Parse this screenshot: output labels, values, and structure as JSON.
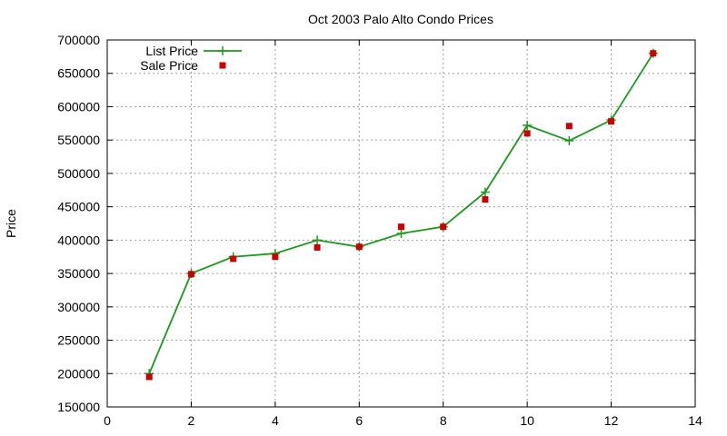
{
  "chart_data": {
    "type": "line",
    "title": "Oct 2003 Palo Alto Condo Prices",
    "xlabel": "",
    "ylabel": "Price",
    "xlim": [
      0,
      14
    ],
    "ylim": [
      150000,
      700000
    ],
    "x_ticks": [
      "0",
      "2",
      "4",
      "6",
      "8",
      "10",
      "12",
      "14"
    ],
    "y_ticks": [
      "150000",
      "200000",
      "250000",
      "300000",
      "350000",
      "400000",
      "450000",
      "500000",
      "550000",
      "600000",
      "650000",
      "700000"
    ],
    "grid": true,
    "legend_position": "top-left",
    "series": [
      {
        "name": "List Price",
        "style": "line+cross",
        "color": "#1a9a1a",
        "x": [
          1,
          2,
          3,
          4,
          5,
          6,
          7,
          8,
          9,
          10,
          11,
          12,
          13
        ],
        "y": [
          200000,
          350000,
          375000,
          380000,
          400000,
          390000,
          410000,
          420000,
          472000,
          572000,
          549000,
          580000,
          680000
        ]
      },
      {
        "name": "Sale Price",
        "style": "square",
        "color": "#cc0000",
        "x": [
          1,
          2,
          3,
          4,
          5,
          6,
          7,
          8,
          9,
          10,
          11,
          12,
          13
        ],
        "y": [
          195000,
          349000,
          372000,
          375000,
          389000,
          390000,
          420000,
          420000,
          461000,
          560000,
          571000,
          578000,
          680000
        ]
      }
    ]
  }
}
